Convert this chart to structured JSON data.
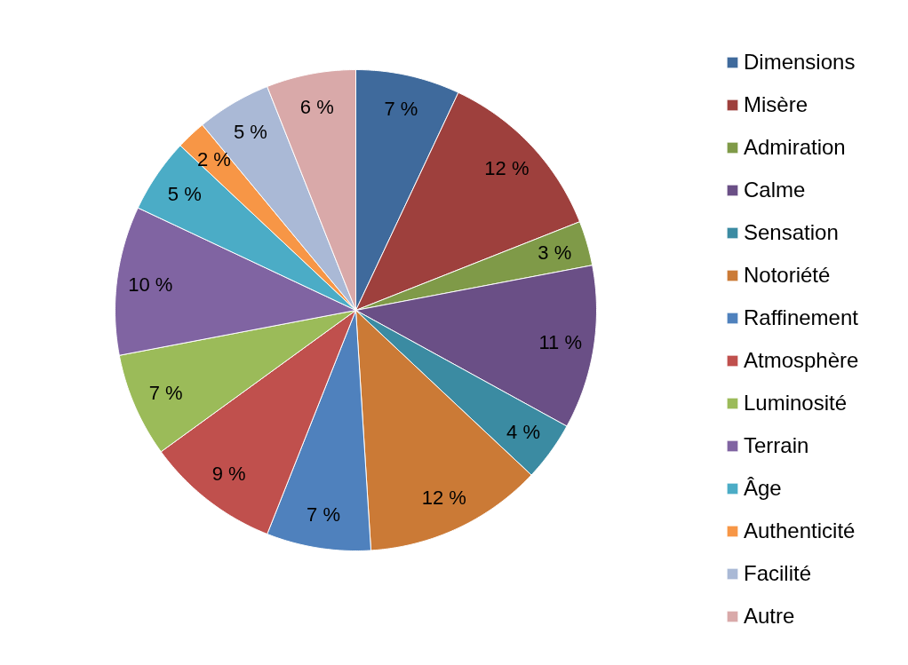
{
  "chart_data": {
    "type": "pie",
    "categories": [
      "Dimensions",
      "Misère",
      "Admiration",
      "Calme",
      "Sensation",
      "Notoriété",
      "Raffinement",
      "Atmosphère",
      "Luminosité",
      "Terrain",
      "Âge",
      "Authenticité",
      "Facilité",
      "Autre"
    ],
    "values": [
      7,
      12,
      3,
      11,
      4,
      12,
      7,
      9,
      7,
      10,
      5,
      2,
      5,
      6
    ],
    "colors": [
      "#3f6a9c",
      "#9e403d",
      "#7f9a48",
      "#6a4f86",
      "#3b8ba2",
      "#cb7a36",
      "#4f81bd",
      "#c0504d",
      "#9bbb59",
      "#8064a2",
      "#4bacc6",
      "#f79646",
      "#aab9d6",
      "#d9a9a9"
    ],
    "value_labels": [
      "7 %",
      "12 %",
      "3 %",
      "11 %",
      "4 %",
      "12 %",
      "7 %",
      "9 %",
      "7 %",
      "10 %",
      "5 %",
      "2 %",
      "5 %",
      "6 %"
    ],
    "legend": "right"
  }
}
